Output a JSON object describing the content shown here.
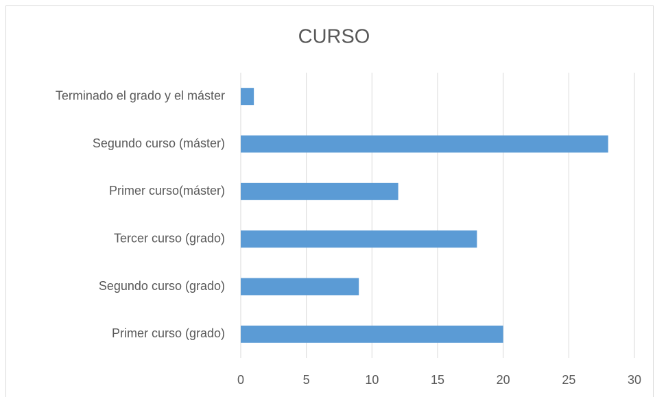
{
  "chart_data": {
    "type": "bar",
    "orientation": "horizontal",
    "title": "CURSO",
    "categories": [
      "Terminado el grado y el máster",
      "Segundo curso (máster)",
      "Primer curso(máster)",
      "Tercer curso (grado)",
      "Segundo curso (grado)",
      "Primer curso (grado)"
    ],
    "values": [
      1,
      28,
      12,
      18,
      9,
      20
    ],
    "color": "#5b9bd5",
    "xlim": [
      0,
      30
    ],
    "xticks": [
      0,
      5,
      10,
      15,
      20,
      25,
      30
    ],
    "grid": true
  }
}
